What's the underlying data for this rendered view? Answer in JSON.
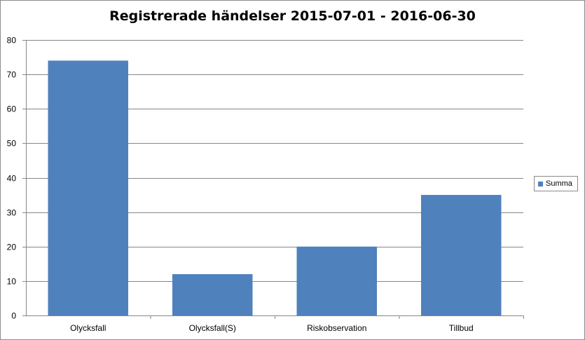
{
  "chart_data": {
    "type": "bar",
    "title": "Registrerade händelser 2015-07-01  - 2016-06-30",
    "xlabel": "",
    "ylabel": "",
    "categories": [
      "Olycksfall",
      "Olycksfall(S)",
      "Riskobservation",
      "Tillbud"
    ],
    "series": [
      {
        "name": "Summa",
        "values": [
          74,
          12,
          20,
          35
        ],
        "color": "#4f81bd"
      }
    ],
    "ylim": [
      0,
      80
    ],
    "yticks": [
      0,
      10,
      20,
      30,
      40,
      50,
      60,
      70,
      80
    ],
    "grid": true,
    "legend_position": "right"
  }
}
